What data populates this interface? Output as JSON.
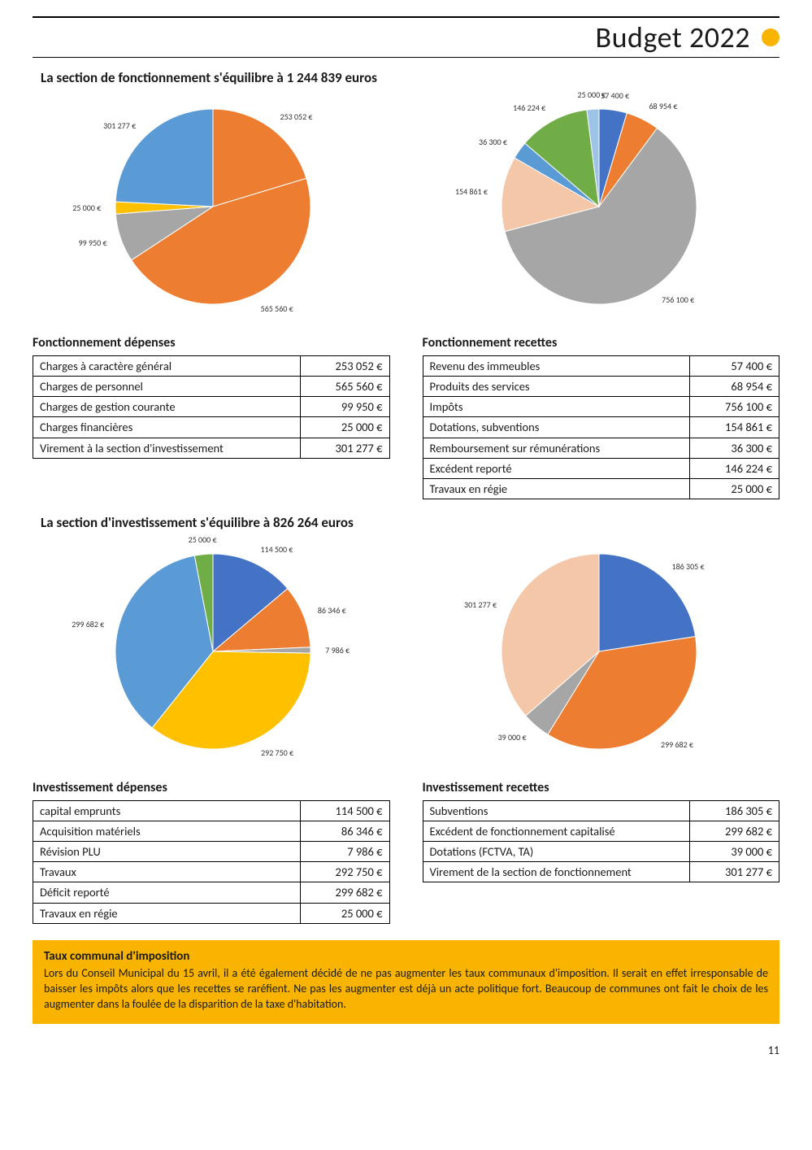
{
  "header": {
    "title": "Budget 2022",
    "dot_color": "#f8b400"
  },
  "section1": {
    "title": "La section de fonctionnement s'équilibre à 1 244 839 euros",
    "chart_depenses": {
      "type": "pie",
      "radius": 120,
      "stroke": "#ffffff",
      "stroke_width": 1,
      "slices": [
        {
          "label": "253 052 €",
          "value": 253052,
          "color": "#ed7d31"
        },
        {
          "label": "565 560 €",
          "value": 565560,
          "color": "#ed7d31"
        },
        {
          "label": "99 950 €",
          "value": 99950,
          "color": "#a6a6a6"
        },
        {
          "label": "25 000 €",
          "value": 25000,
          "color": "#ffc000"
        },
        {
          "label": "301 277 €",
          "value": 301277,
          "color": "#5b9bd5"
        }
      ]
    },
    "chart_recettes": {
      "type": "pie",
      "radius": 120,
      "stroke": "#ffffff",
      "stroke_width": 1,
      "slices": [
        {
          "label": "57 400 €",
          "value": 57400,
          "color": "#4472c4"
        },
        {
          "label": "68 954 €",
          "value": 68954,
          "color": "#ed7d31"
        },
        {
          "label": "756 100 €",
          "value": 756100,
          "color": "#a6a6a6"
        },
        {
          "label": "154 861 €",
          "value": 154861,
          "color": "#f4c7a8"
        },
        {
          "label": "36 300 €",
          "value": 36300,
          "color": "#5b9bd5"
        },
        {
          "label": "146 224 €",
          "value": 146224,
          "color": "#70ad47"
        },
        {
          "label": "25 000 €",
          "value": 25000,
          "color": "#9dc3e6"
        }
      ]
    },
    "table_depenses": {
      "title": "Fonctionnement dépenses",
      "rows": [
        [
          "Charges à caractère général",
          "253 052 €"
        ],
        [
          "Charges de personnel",
          "565 560 €"
        ],
        [
          "Charges de gestion courante",
          "99 950 €"
        ],
        [
          "Charges financières",
          "25 000 €"
        ],
        [
          "Virement à la section d'investissement",
          "301 277 €"
        ]
      ]
    },
    "table_recettes": {
      "title": "Fonctionnement recettes",
      "rows": [
        [
          "Revenu des immeubles",
          "57 400 €"
        ],
        [
          "Produits des services",
          "68 954 €"
        ],
        [
          "Impôts",
          "756 100 €"
        ],
        [
          "Dotations, subventions",
          "154 861 €"
        ],
        [
          "Remboursement sur rémunérations",
          "36 300 €"
        ],
        [
          "Excédent reporté",
          "146 224 €"
        ],
        [
          "Travaux en régie",
          "25 000 €"
        ]
      ]
    }
  },
  "section2": {
    "title": "La section d'investissement s'équilibre à 826 264 euros",
    "chart_depenses": {
      "type": "pie",
      "radius": 120,
      "stroke": "#ffffff",
      "stroke_width": 1,
      "slices": [
        {
          "label": "114 500 €",
          "value": 114500,
          "color": "#4472c4"
        },
        {
          "label": "86 346 €",
          "value": 86346,
          "color": "#ed7d31"
        },
        {
          "label": "7 986 €",
          "value": 7986,
          "color": "#a6a6a6"
        },
        {
          "label": "292 750 €",
          "value": 292750,
          "color": "#ffc000"
        },
        {
          "label": "299 682 €",
          "value": 299682,
          "color": "#5b9bd5"
        },
        {
          "label": "25 000 €",
          "value": 25000,
          "color": "#70ad47"
        }
      ]
    },
    "chart_recettes": {
      "type": "pie",
      "radius": 120,
      "stroke": "#ffffff",
      "stroke_width": 1,
      "slices": [
        {
          "label": "186 305 €",
          "value": 186305,
          "color": "#4472c4"
        },
        {
          "label": "299 682 €",
          "value": 299682,
          "color": "#ed7d31"
        },
        {
          "label": "39 000 €",
          "value": 39000,
          "color": "#a6a6a6"
        },
        {
          "label": "301 277 €",
          "value": 301277,
          "color": "#f4c7a8"
        }
      ]
    },
    "table_depenses": {
      "title": "Investissement dépenses",
      "rows": [
        [
          "capital emprunts",
          "114 500 €"
        ],
        [
          "Acquisition matériels",
          "86 346 €"
        ],
        [
          "Révision PLU",
          "7 986 €"
        ],
        [
          "Travaux",
          "292 750 €"
        ],
        [
          "Déficit reporté",
          "299 682 €"
        ],
        [
          "Travaux en régie",
          "25 000 €"
        ]
      ]
    },
    "table_recettes": {
      "title": "Investissement recettes",
      "rows": [
        [
          "Subventions",
          "186 305 €"
        ],
        [
          "Excédent de fonctionnement capitalisé",
          "299 682 €"
        ],
        [
          "Dotations (FCTVA, TA)",
          "39 000 €"
        ],
        [
          "Virement de la section de fonctionnement",
          "301 277 €"
        ]
      ]
    }
  },
  "info_box": {
    "title": "Taux communal d'imposition",
    "body": "Lors du Conseil Municipal du 15 avril, il a été également décidé de ne pas augmenter les taux communaux d'imposition. Il serait en effet irresponsable de baisser les impôts alors que les recettes se raréfient. Ne pas les augmenter est déjà un acte politique fort. Beaucoup de communes ont fait le choix de les augmenter dans la foulée de la disparition de la taxe d'habitation."
  },
  "page_number": "11"
}
